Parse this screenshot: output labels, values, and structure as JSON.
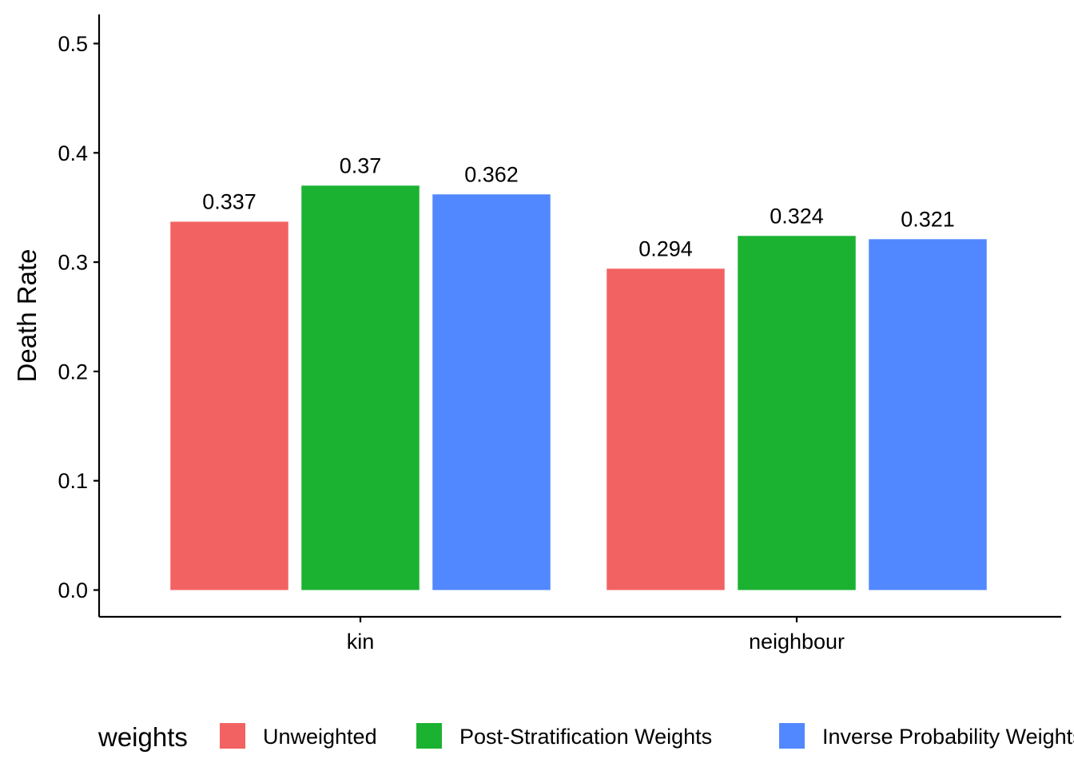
{
  "chart_data": {
    "type": "bar",
    "categories": [
      "kin",
      "neighbour"
    ],
    "series": [
      {
        "name": "Unweighted",
        "values": [
          0.337,
          0.294
        ],
        "labels": [
          "0.337",
          "0.294"
        ],
        "color": "#F36262"
      },
      {
        "name": "Post-Stratification Weights",
        "values": [
          0.37,
          0.324
        ],
        "labels": [
          "0.37",
          "0.324"
        ],
        "color": "#1BB232"
      },
      {
        "name": "Inverse Probability Weights",
        "values": [
          0.362,
          0.321
        ],
        "labels": [
          "0.362",
          "0.321"
        ],
        "color": "#5288FF"
      }
    ],
    "title": "",
    "xlabel": "",
    "ylabel": "Death Rate",
    "ylim": [
      0,
      0.5
    ],
    "yticks": [
      0.0,
      0.1,
      0.2,
      0.3,
      0.4,
      0.5
    ],
    "ytick_labels": [
      "0.0",
      "0.1",
      "0.2",
      "0.3",
      "0.4",
      "0.5"
    ],
    "grid": false,
    "legend": {
      "title": "weights",
      "position": "bottom"
    }
  }
}
